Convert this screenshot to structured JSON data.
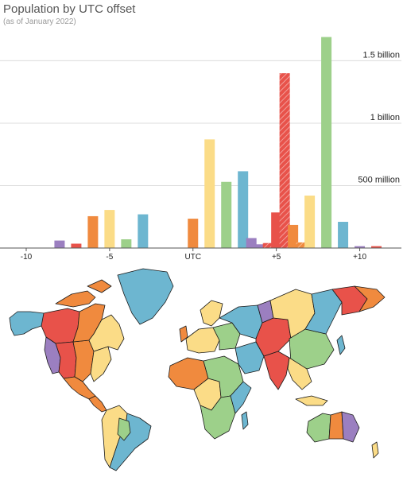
{
  "colors": {
    "purple": "#9b7fc0",
    "red": "#e8524a",
    "orange": "#f08a3e",
    "yellow": "#fbdc87",
    "green": "#9dd08a",
    "blue": "#6db6d0",
    "ocean": "#ffffff",
    "outline": "#1a1a1a"
  },
  "chart_data": {
    "type": "bar",
    "title": "Population by UTC offset",
    "subtitle": "(as of January 2022)",
    "xlabel": "",
    "ylabel": "",
    "xlim": [
      -11,
      12.5
    ],
    "ylim": [
      0,
      1700
    ],
    "y_unit": "million people",
    "y_ticks": [
      {
        "value": 500,
        "label": "500 million"
      },
      {
        "value": 1000,
        "label": "1 billion"
      },
      {
        "value": 1500,
        "label": "1.5 billion"
      }
    ],
    "x_ticks": [
      {
        "value": -10,
        "label": "-10"
      },
      {
        "value": -5,
        "label": "-5"
      },
      {
        "value": 0,
        "label": "UTC"
      },
      {
        "value": 5,
        "label": "+5"
      },
      {
        "value": 10,
        "label": "+10"
      }
    ],
    "grid": true,
    "bars": [
      {
        "offset": -8,
        "value": 60,
        "color": "purple"
      },
      {
        "offset": -7,
        "value": 35,
        "color": "red"
      },
      {
        "offset": -6,
        "value": 255,
        "color": "orange"
      },
      {
        "offset": -5,
        "value": 305,
        "color": "yellow"
      },
      {
        "offset": -4,
        "value": 70,
        "color": "green"
      },
      {
        "offset": -3,
        "value": 270,
        "color": "blue"
      },
      {
        "offset": 0,
        "value": 235,
        "color": "orange"
      },
      {
        "offset": 1,
        "value": 870,
        "color": "yellow"
      },
      {
        "offset": 2,
        "value": 530,
        "color": "green"
      },
      {
        "offset": 3,
        "value": 615,
        "color": "blue"
      },
      {
        "offset": 3.5,
        "value": 80,
        "color": "purple"
      },
      {
        "offset": 4,
        "value": 30,
        "color": "purple"
      },
      {
        "offset": 4.5,
        "value": 40,
        "color": "red",
        "hatched": true
      },
      {
        "offset": 5,
        "value": 285,
        "color": "red"
      },
      {
        "offset": 5.5,
        "value": 1400,
        "color": "red",
        "hatched": true
      },
      {
        "offset": 6,
        "value": 185,
        "color": "orange"
      },
      {
        "offset": 6.5,
        "value": 45,
        "color": "orange",
        "hatched": true
      },
      {
        "offset": 7,
        "value": 420,
        "color": "yellow"
      },
      {
        "offset": 8,
        "value": 1690,
        "color": "green"
      },
      {
        "offset": 9,
        "value": 210,
        "color": "blue"
      },
      {
        "offset": 10,
        "value": 15,
        "color": "purple"
      },
      {
        "offset": 11,
        "value": 15,
        "color": "red"
      }
    ]
  }
}
